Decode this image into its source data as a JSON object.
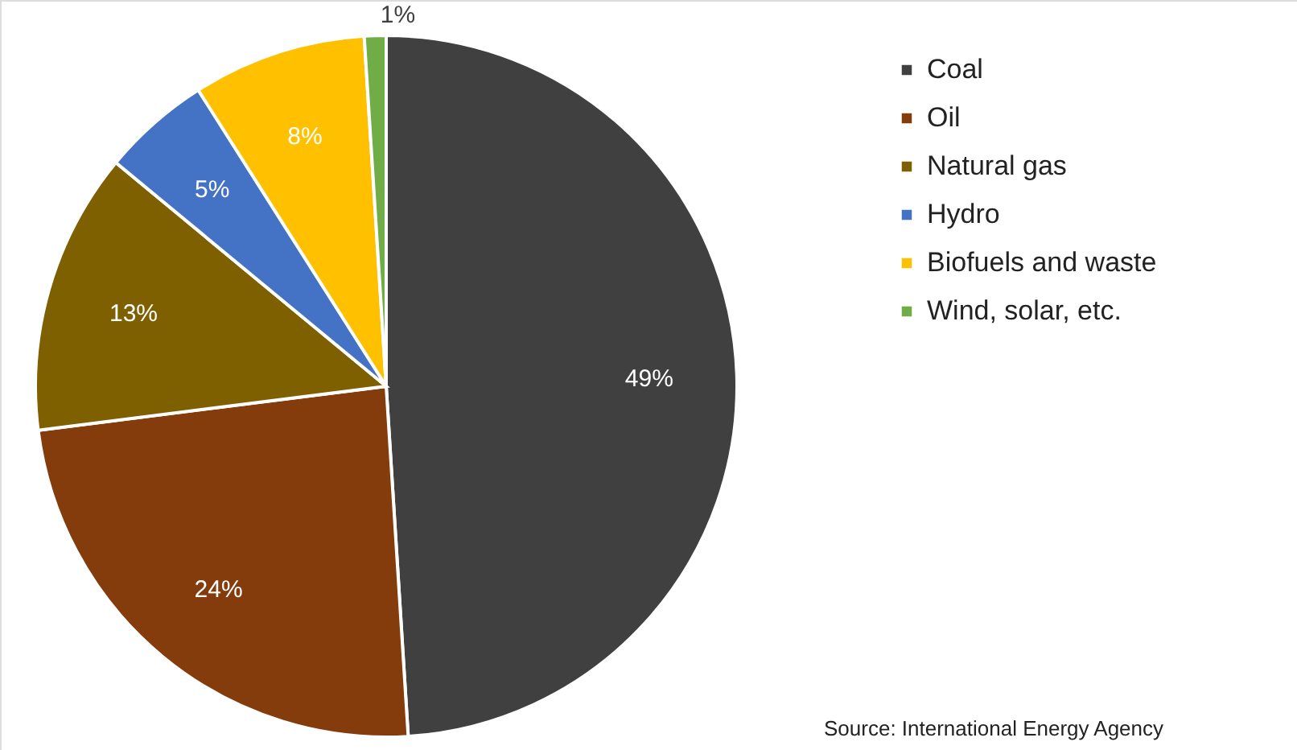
{
  "chart_data": {
    "type": "pie",
    "categories": [
      "Coal",
      "Oil",
      "Natural gas",
      "Hydro",
      "Biofuels and waste",
      "Wind, solar, etc."
    ],
    "values": [
      49,
      24,
      13,
      5,
      8,
      1
    ],
    "colors": [
      "#404040",
      "#843c0c",
      "#7f6000",
      "#4472c4",
      "#ffc000",
      "#70ad47"
    ],
    "value_labels": [
      "49%",
      "24%",
      "13%",
      "5%",
      "8%",
      "1%"
    ],
    "legend": "right",
    "annotations": [
      "Source: International Energy Agency"
    ]
  }
}
